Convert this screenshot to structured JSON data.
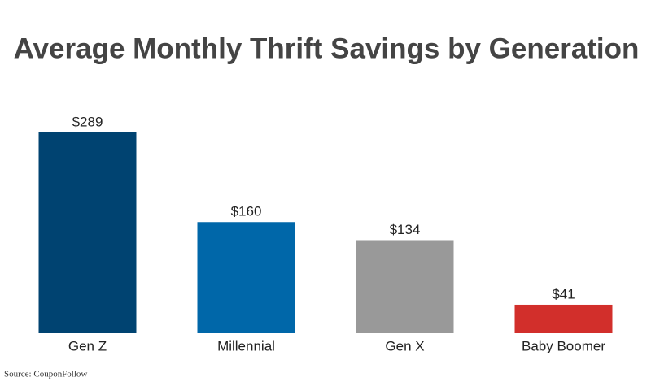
{
  "chart_data": {
    "type": "bar",
    "title": "Average Monthly Thrift Savings by Generation",
    "categories": [
      "Gen Z",
      "Millennial",
      "Gen X",
      "Baby Boomer"
    ],
    "values": [
      289,
      160,
      134,
      41
    ],
    "value_labels": [
      "$289",
      "$160",
      "$134",
      "$41"
    ],
    "colors": [
      "#004371",
      "#0067a9",
      "#999999",
      "#d22f2b"
    ],
    "source": "Source: CouponFollow"
  }
}
